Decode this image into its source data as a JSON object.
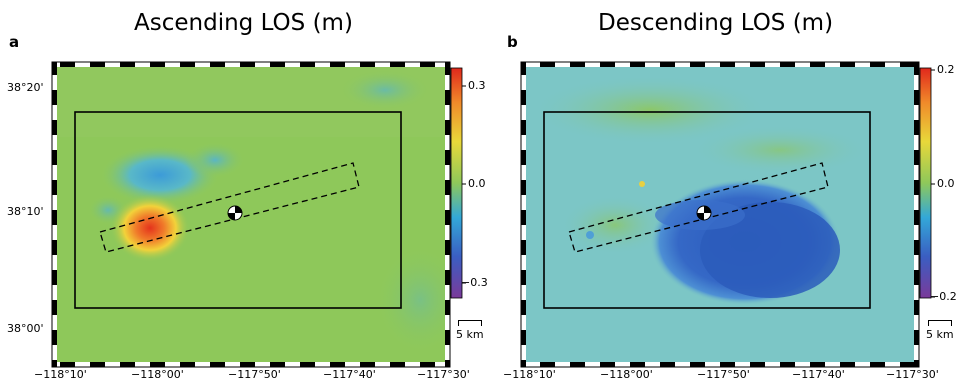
{
  "panels": [
    {
      "letter": "a",
      "title": "Ascending LOS (m)",
      "colorbar_ticks": [
        "0.3",
        "0.0",
        "−0.3"
      ],
      "colorbar_range": [
        -0.36,
        0.36
      ],
      "scale_label": "5 km",
      "deformation": "positive lobe (~0.35 m, red) at western fault end near 118°00'W 38°08'N; weak negative (blue) lobe north of fault"
    },
    {
      "letter": "b",
      "title": "Descending LOS (m)",
      "colorbar_ticks": [
        "0.2",
        "0.0",
        "−0.2"
      ],
      "colorbar_range": [
        -0.2,
        0.2
      ],
      "scale_label": "5 km",
      "deformation": "large negative lobe (~−0.2 m, dark blue) south-east of epicenter"
    }
  ],
  "axes": {
    "x_ticks": [
      "−118°10'",
      "−118°00'",
      "−117°50'",
      "−117°40'",
      "−117°30'"
    ],
    "y_ticks": [
      "38°20'",
      "38°10'",
      "38°00'"
    ]
  },
  "colors": {
    "background_field_a": "#8ec85a",
    "background_field_b": "#7cc6c6",
    "positive": "#e63b1e",
    "negative": "#2f5fbf",
    "frame": "#000000"
  }
}
